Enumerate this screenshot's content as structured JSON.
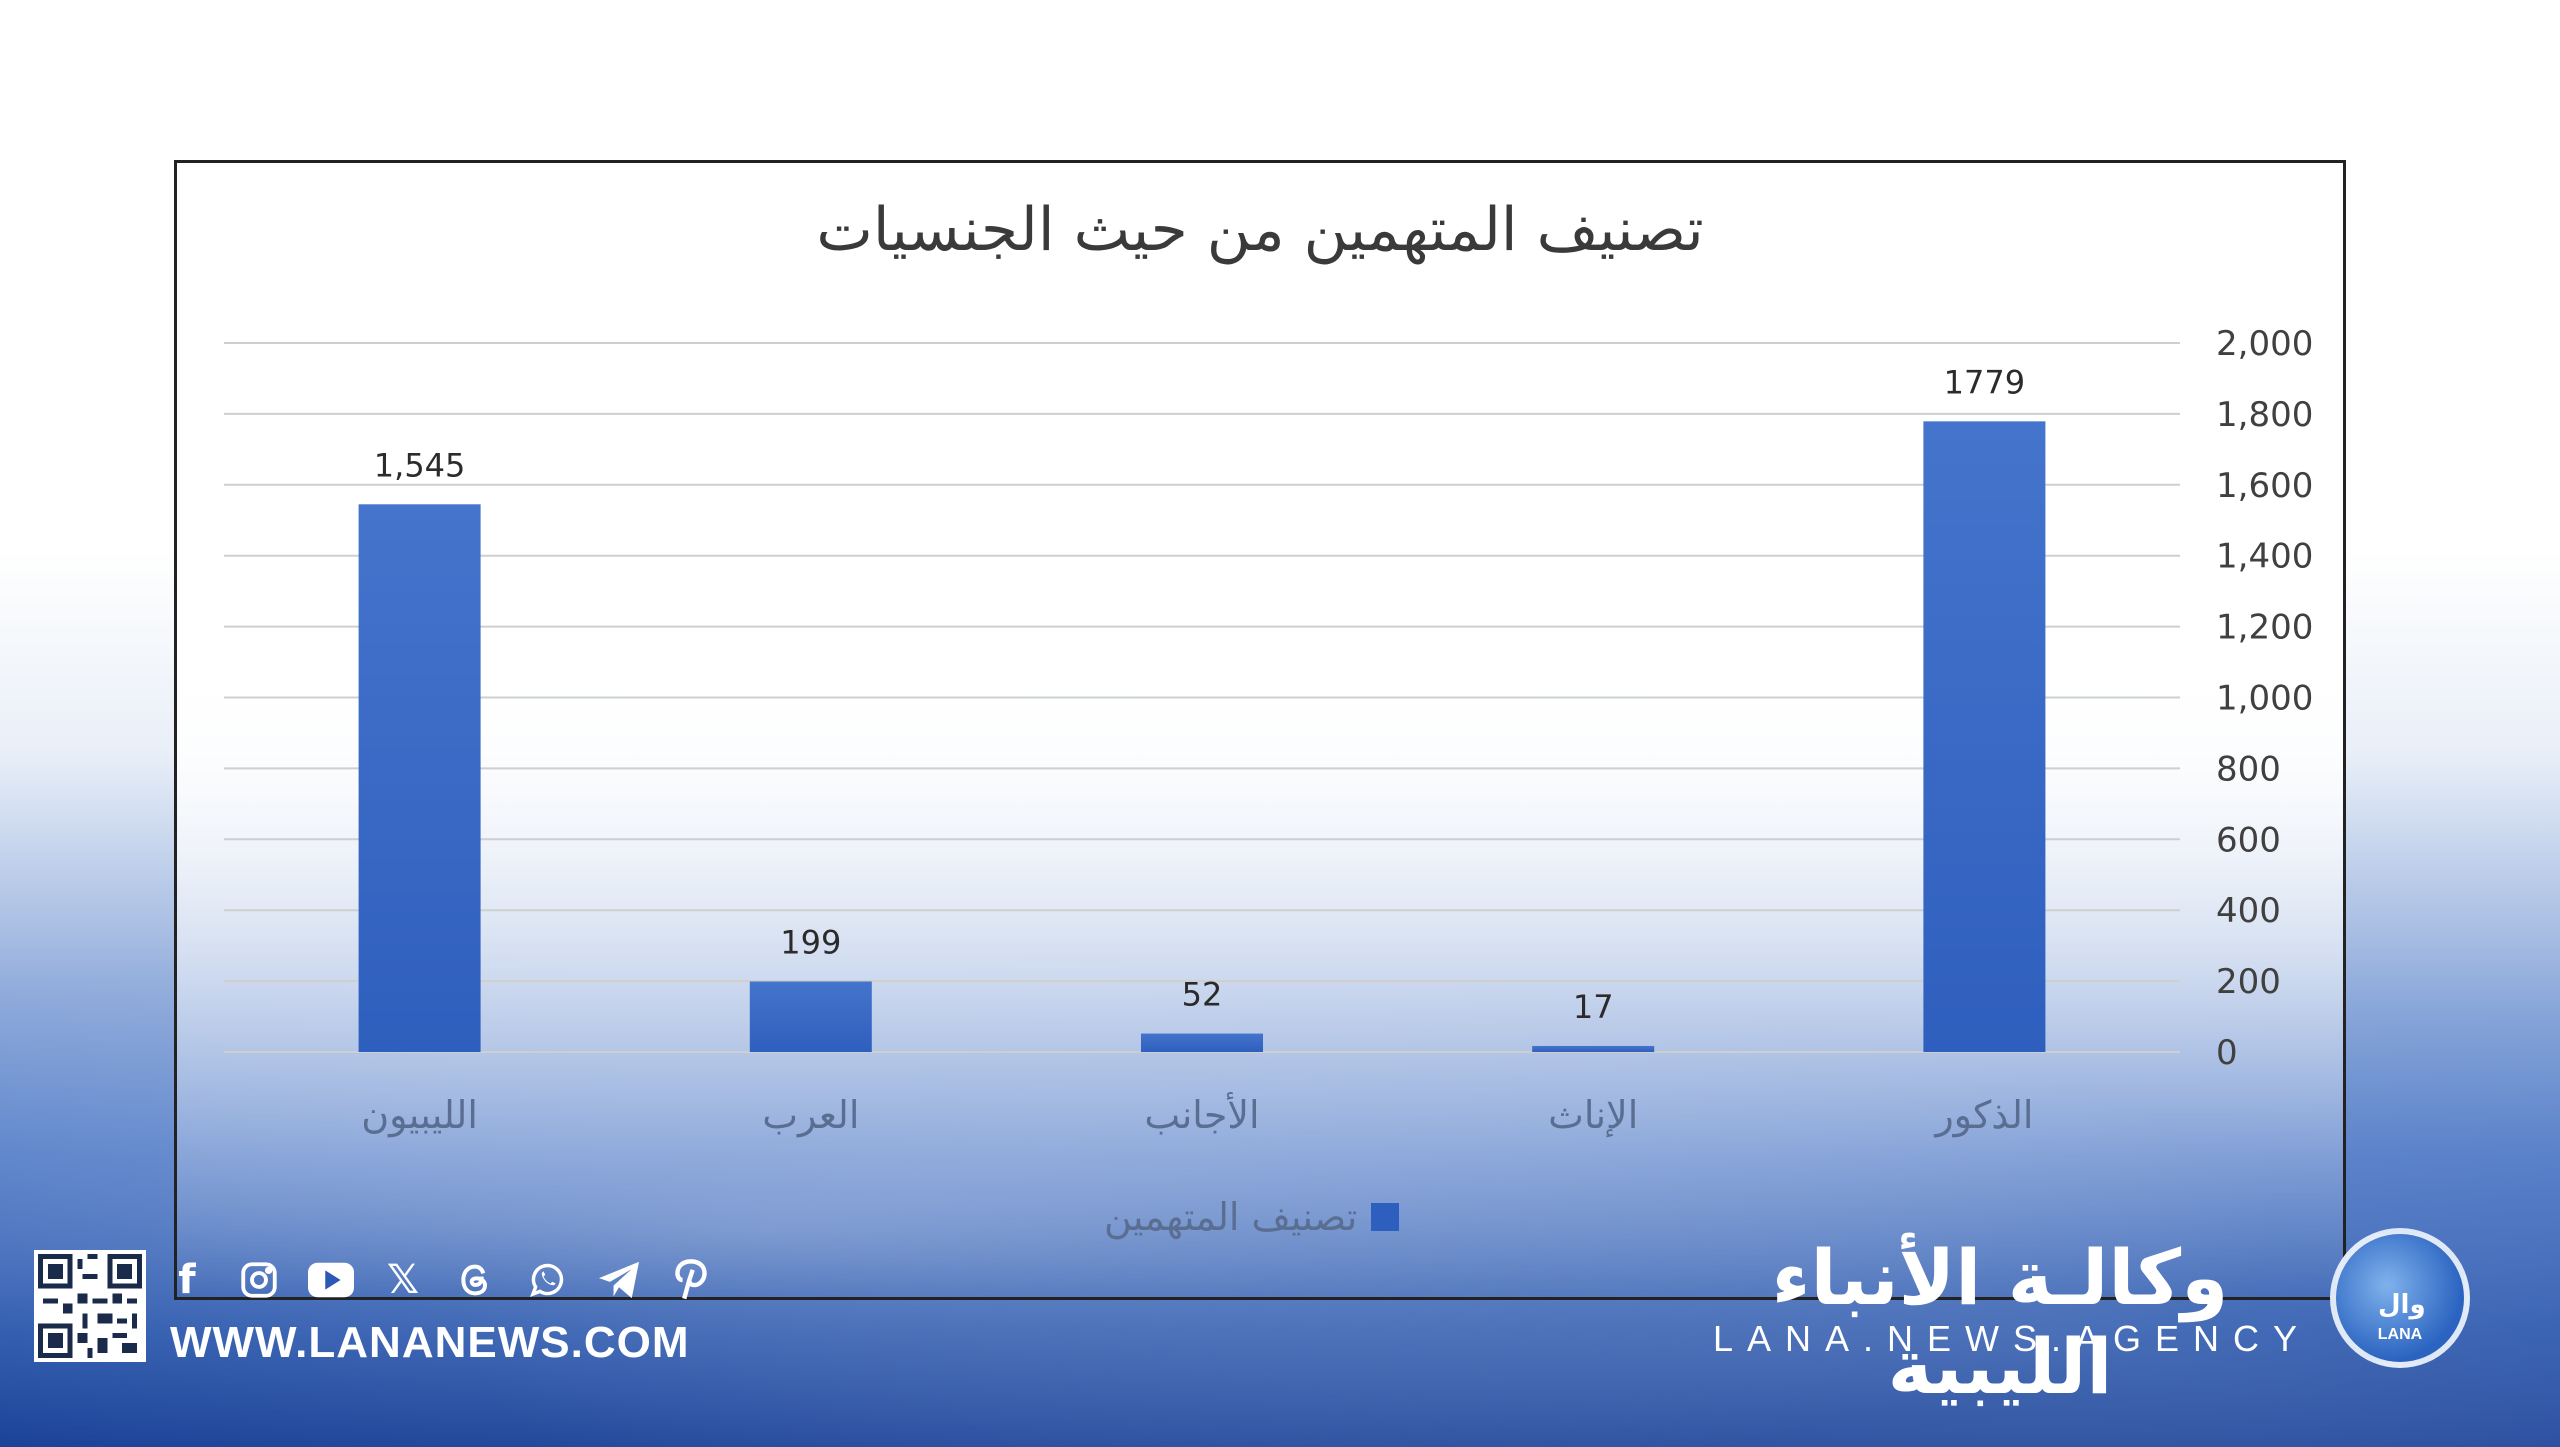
{
  "chart_data": {
    "type": "bar",
    "title": "تصنيف المتهمين من حيث الجنسيات",
    "categories": [
      "الليبيون",
      "العرب",
      "الأجانب",
      "الإناث",
      "الذكور"
    ],
    "series": [
      {
        "name": "تصنيف المتهمين",
        "values": [
          1545,
          199,
          52,
          17,
          1779
        ]
      }
    ],
    "data_labels": [
      "1,545",
      "199",
      "52",
      "17",
      "1779"
    ],
    "y_ticks": [
      "0",
      "200",
      "400",
      "600",
      "800",
      "1,000",
      "1,200",
      "1,400",
      "1,600",
      "1,800",
      "2,000"
    ],
    "ylim": [
      0,
      2000
    ],
    "y_axis_position": "right",
    "grid": true,
    "legend_position": "bottom",
    "bar_color": "#2f5fbe"
  },
  "footer": {
    "website": "WWW.LANANEWS.COM",
    "agency_name_ar": "وكالـة الأنباء الليبية",
    "agency_name_en": "LANA.NEWS.AGENCY",
    "logo_ar": "وال",
    "logo_en": "LANA",
    "social_icons": [
      "facebook-icon",
      "instagram-icon",
      "youtube-icon",
      "x-icon",
      "threads-icon",
      "whatsapp-icon",
      "telegram-icon",
      "pinterest-icon"
    ]
  }
}
